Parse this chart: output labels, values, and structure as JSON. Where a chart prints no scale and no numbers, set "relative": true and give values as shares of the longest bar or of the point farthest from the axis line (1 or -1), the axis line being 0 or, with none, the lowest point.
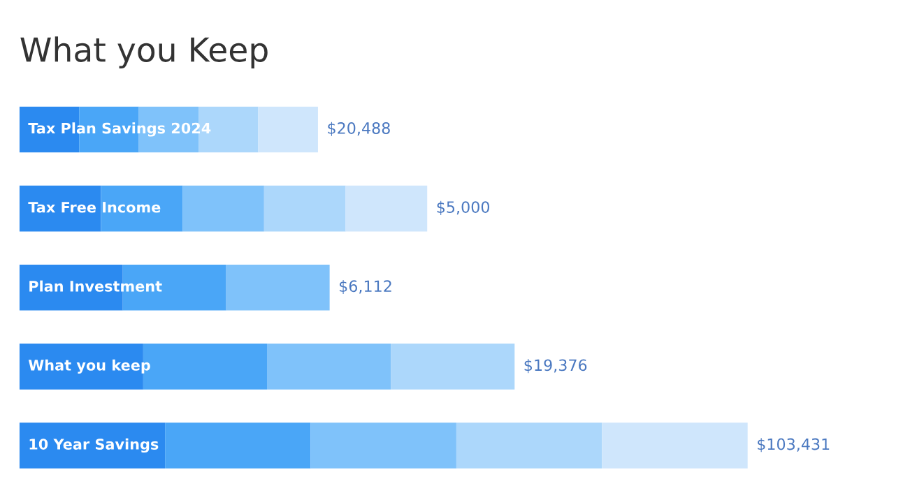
{
  "chart_data": {
    "type": "bar",
    "orientation": "horizontal",
    "stacked": true,
    "relative": true,
    "title": "What you Keep",
    "categories": [
      "Tax Plan Savings 2024",
      "Tax Free Income",
      "Plan Investment",
      "What you keep",
      "10 Year Savings"
    ],
    "series": [
      {
        "color": "#2b8af0",
        "values": [
          0.082,
          0.112,
          0.142,
          0.17,
          0.2
        ]
      },
      {
        "color": "#4aa6f7",
        "values": [
          0.082,
          0.112,
          0.142,
          0.17,
          0.2
        ]
      },
      {
        "color": "#7fc2fa",
        "values": [
          0.082,
          0.112,
          0.142,
          0.17,
          0.2
        ]
      },
      {
        "color": "#acd7fb",
        "values": [
          0.082,
          0.112,
          null,
          0.17,
          0.2
        ]
      },
      {
        "color": "#cfe6fc",
        "values": [
          0.082,
          0.112,
          null,
          null,
          0.2
        ]
      }
    ],
    "value_labels": [
      "$20,488",
      "$5,000",
      "$6,112",
      "$19,376",
      "$103,431"
    ],
    "legend": false
  }
}
